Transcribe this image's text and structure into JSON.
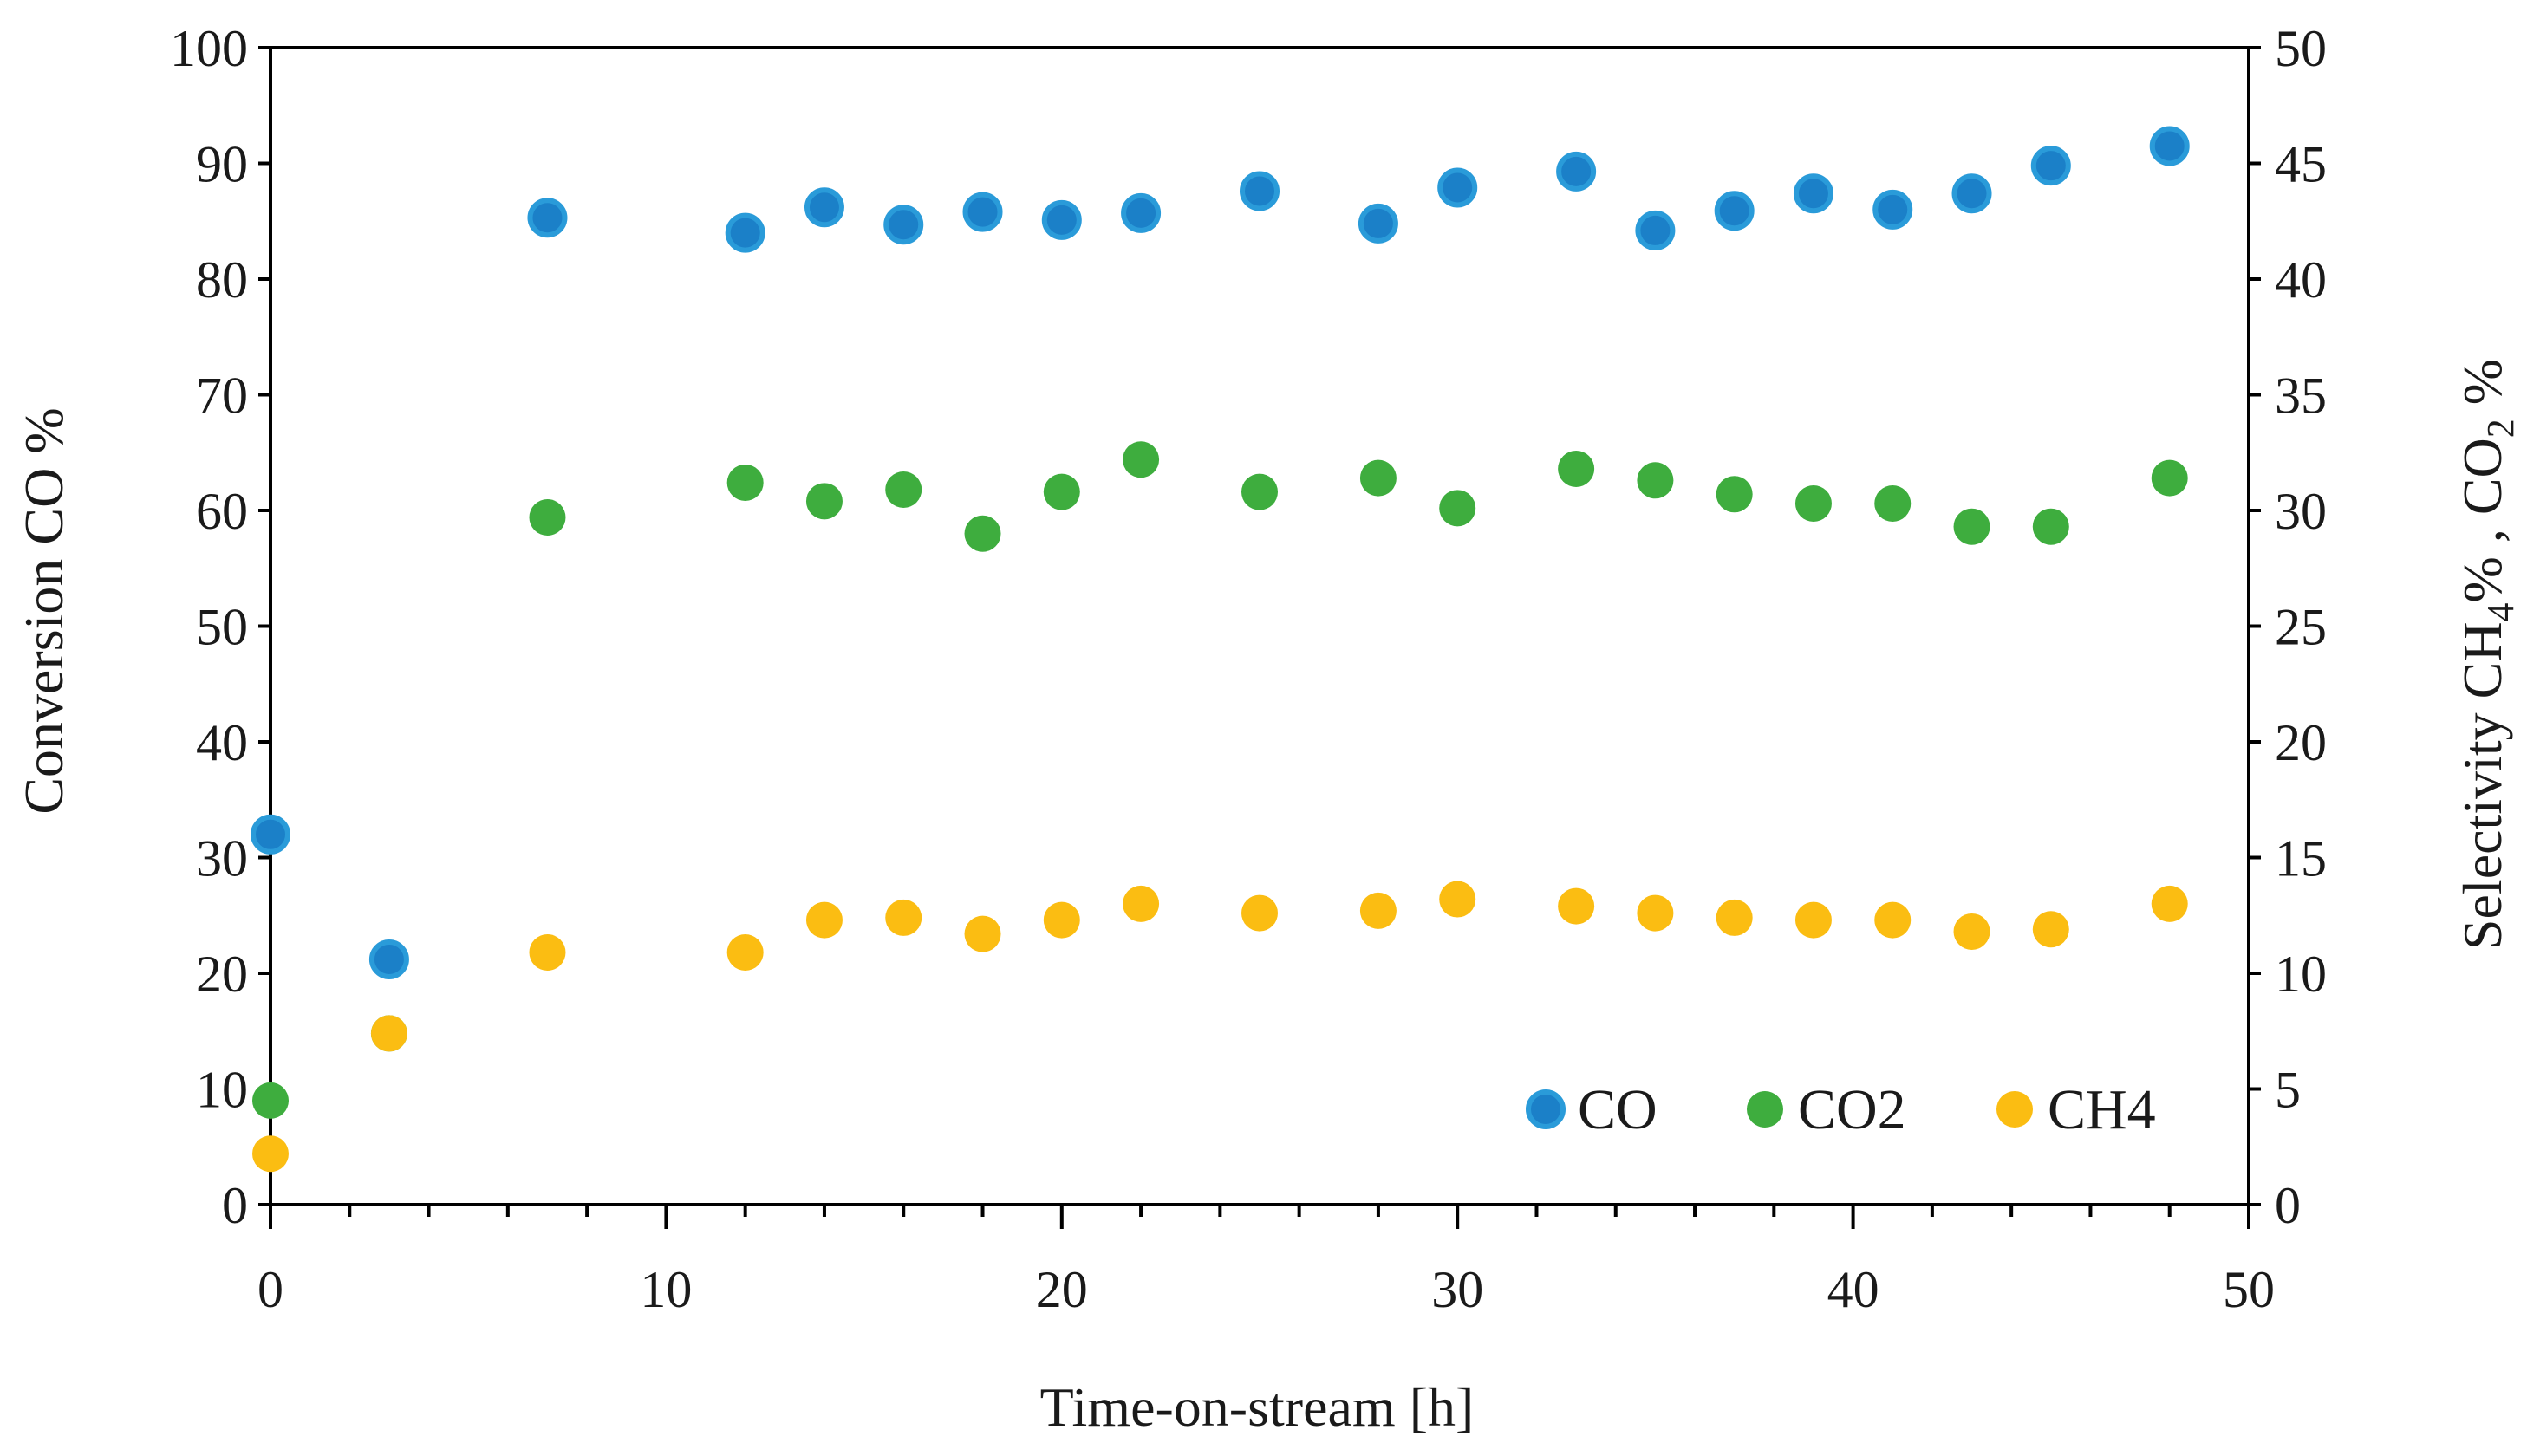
{
  "chart_data": {
    "type": "scatter",
    "title": "",
    "xlabel": "Time-on-stream [h]",
    "ylabel": "Conversion CO %",
    "y2label": {
      "pre": "Selectivity CH",
      "sub1": "4",
      "mid": "% , CO",
      "sub2": "2",
      "post": " %"
    },
    "xlim": [
      0,
      50
    ],
    "ylim": [
      0,
      100
    ],
    "y2lim": [
      0,
      50
    ],
    "x_ticks": [
      0,
      10,
      20,
      30,
      40,
      50
    ],
    "y_ticks": [
      0,
      10,
      20,
      30,
      40,
      50,
      60,
      70,
      80,
      90,
      100
    ],
    "y2_ticks": [
      0,
      5,
      10,
      15,
      20,
      25,
      30,
      35,
      40,
      45,
      50
    ],
    "legend_position": "bottom-right",
    "series": [
      {
        "name": "CO",
        "axis": "left",
        "color": "#1b80c8",
        "x": [
          0,
          3,
          7,
          12,
          14,
          16,
          18,
          20,
          22,
          25,
          28,
          30,
          33,
          35,
          37,
          39,
          41,
          43,
          45,
          48
        ],
        "y": [
          32,
          21.2,
          85.3,
          84,
          86.2,
          84.7,
          85.8,
          85.1,
          85.7,
          87.6,
          84.8,
          87.9,
          89.3,
          84.2,
          85.9,
          87.4,
          86,
          87.4,
          89.8,
          91.5
        ]
      },
      {
        "name": "CO2",
        "axis": "right",
        "color": "#3ead3e",
        "x": [
          0,
          3,
          7,
          12,
          14,
          16,
          18,
          20,
          22,
          25,
          28,
          30,
          33,
          35,
          37,
          39,
          41,
          43,
          45,
          48
        ],
        "y": [
          4.5,
          7.4,
          29.7,
          31.2,
          30.4,
          30.9,
          29,
          30.8,
          32.2,
          30.8,
          31.4,
          30.1,
          31.8,
          31.3,
          30.7,
          30.3,
          30.3,
          29.3,
          29.3,
          31.4
        ]
      },
      {
        "name": "CH4",
        "axis": "right",
        "color": "#fbbd12",
        "x": [
          0,
          3,
          7,
          12,
          14,
          16,
          18,
          20,
          22,
          25,
          28,
          30,
          33,
          35,
          37,
          39,
          41,
          43,
          45,
          48
        ],
        "y": [
          2.2,
          7.4,
          10.9,
          10.9,
          12.3,
          12.4,
          11.7,
          12.3,
          13,
          12.6,
          12.7,
          13.2,
          12.9,
          12.6,
          12.4,
          12.3,
          12.3,
          11.8,
          11.9,
          13
        ]
      }
    ]
  }
}
